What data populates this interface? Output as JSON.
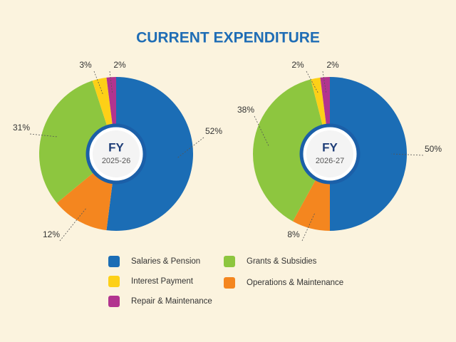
{
  "title": "CURRENT EXPENDITURE",
  "legend": {
    "items": [
      {
        "name": "Salaries & Pension",
        "color": "#1b6db5"
      },
      {
        "name": "Operations & Maintenance",
        "color": "#f4861f"
      },
      {
        "name": "Grants & Subsidies",
        "color": "#8dc63f"
      },
      {
        "name": "Interest Payment",
        "color": "#fdd017"
      },
      {
        "name": "Repair & Maintenance",
        "color": "#b2348f"
      }
    ]
  },
  "chart_data": [
    {
      "type": "pie",
      "center_title": "FY",
      "center_subtitle": "2025-26",
      "values": [
        52,
        12,
        31,
        3,
        2
      ],
      "value_labels": [
        "52%",
        "12%",
        "31%",
        "3%",
        "2%"
      ]
    },
    {
      "type": "pie",
      "center_title": "FY",
      "center_subtitle": "2026-27",
      "values": [
        50,
        8,
        38,
        2,
        2
      ],
      "value_labels": [
        "50%",
        "8%",
        "38%",
        "2%",
        "2%"
      ]
    }
  ]
}
